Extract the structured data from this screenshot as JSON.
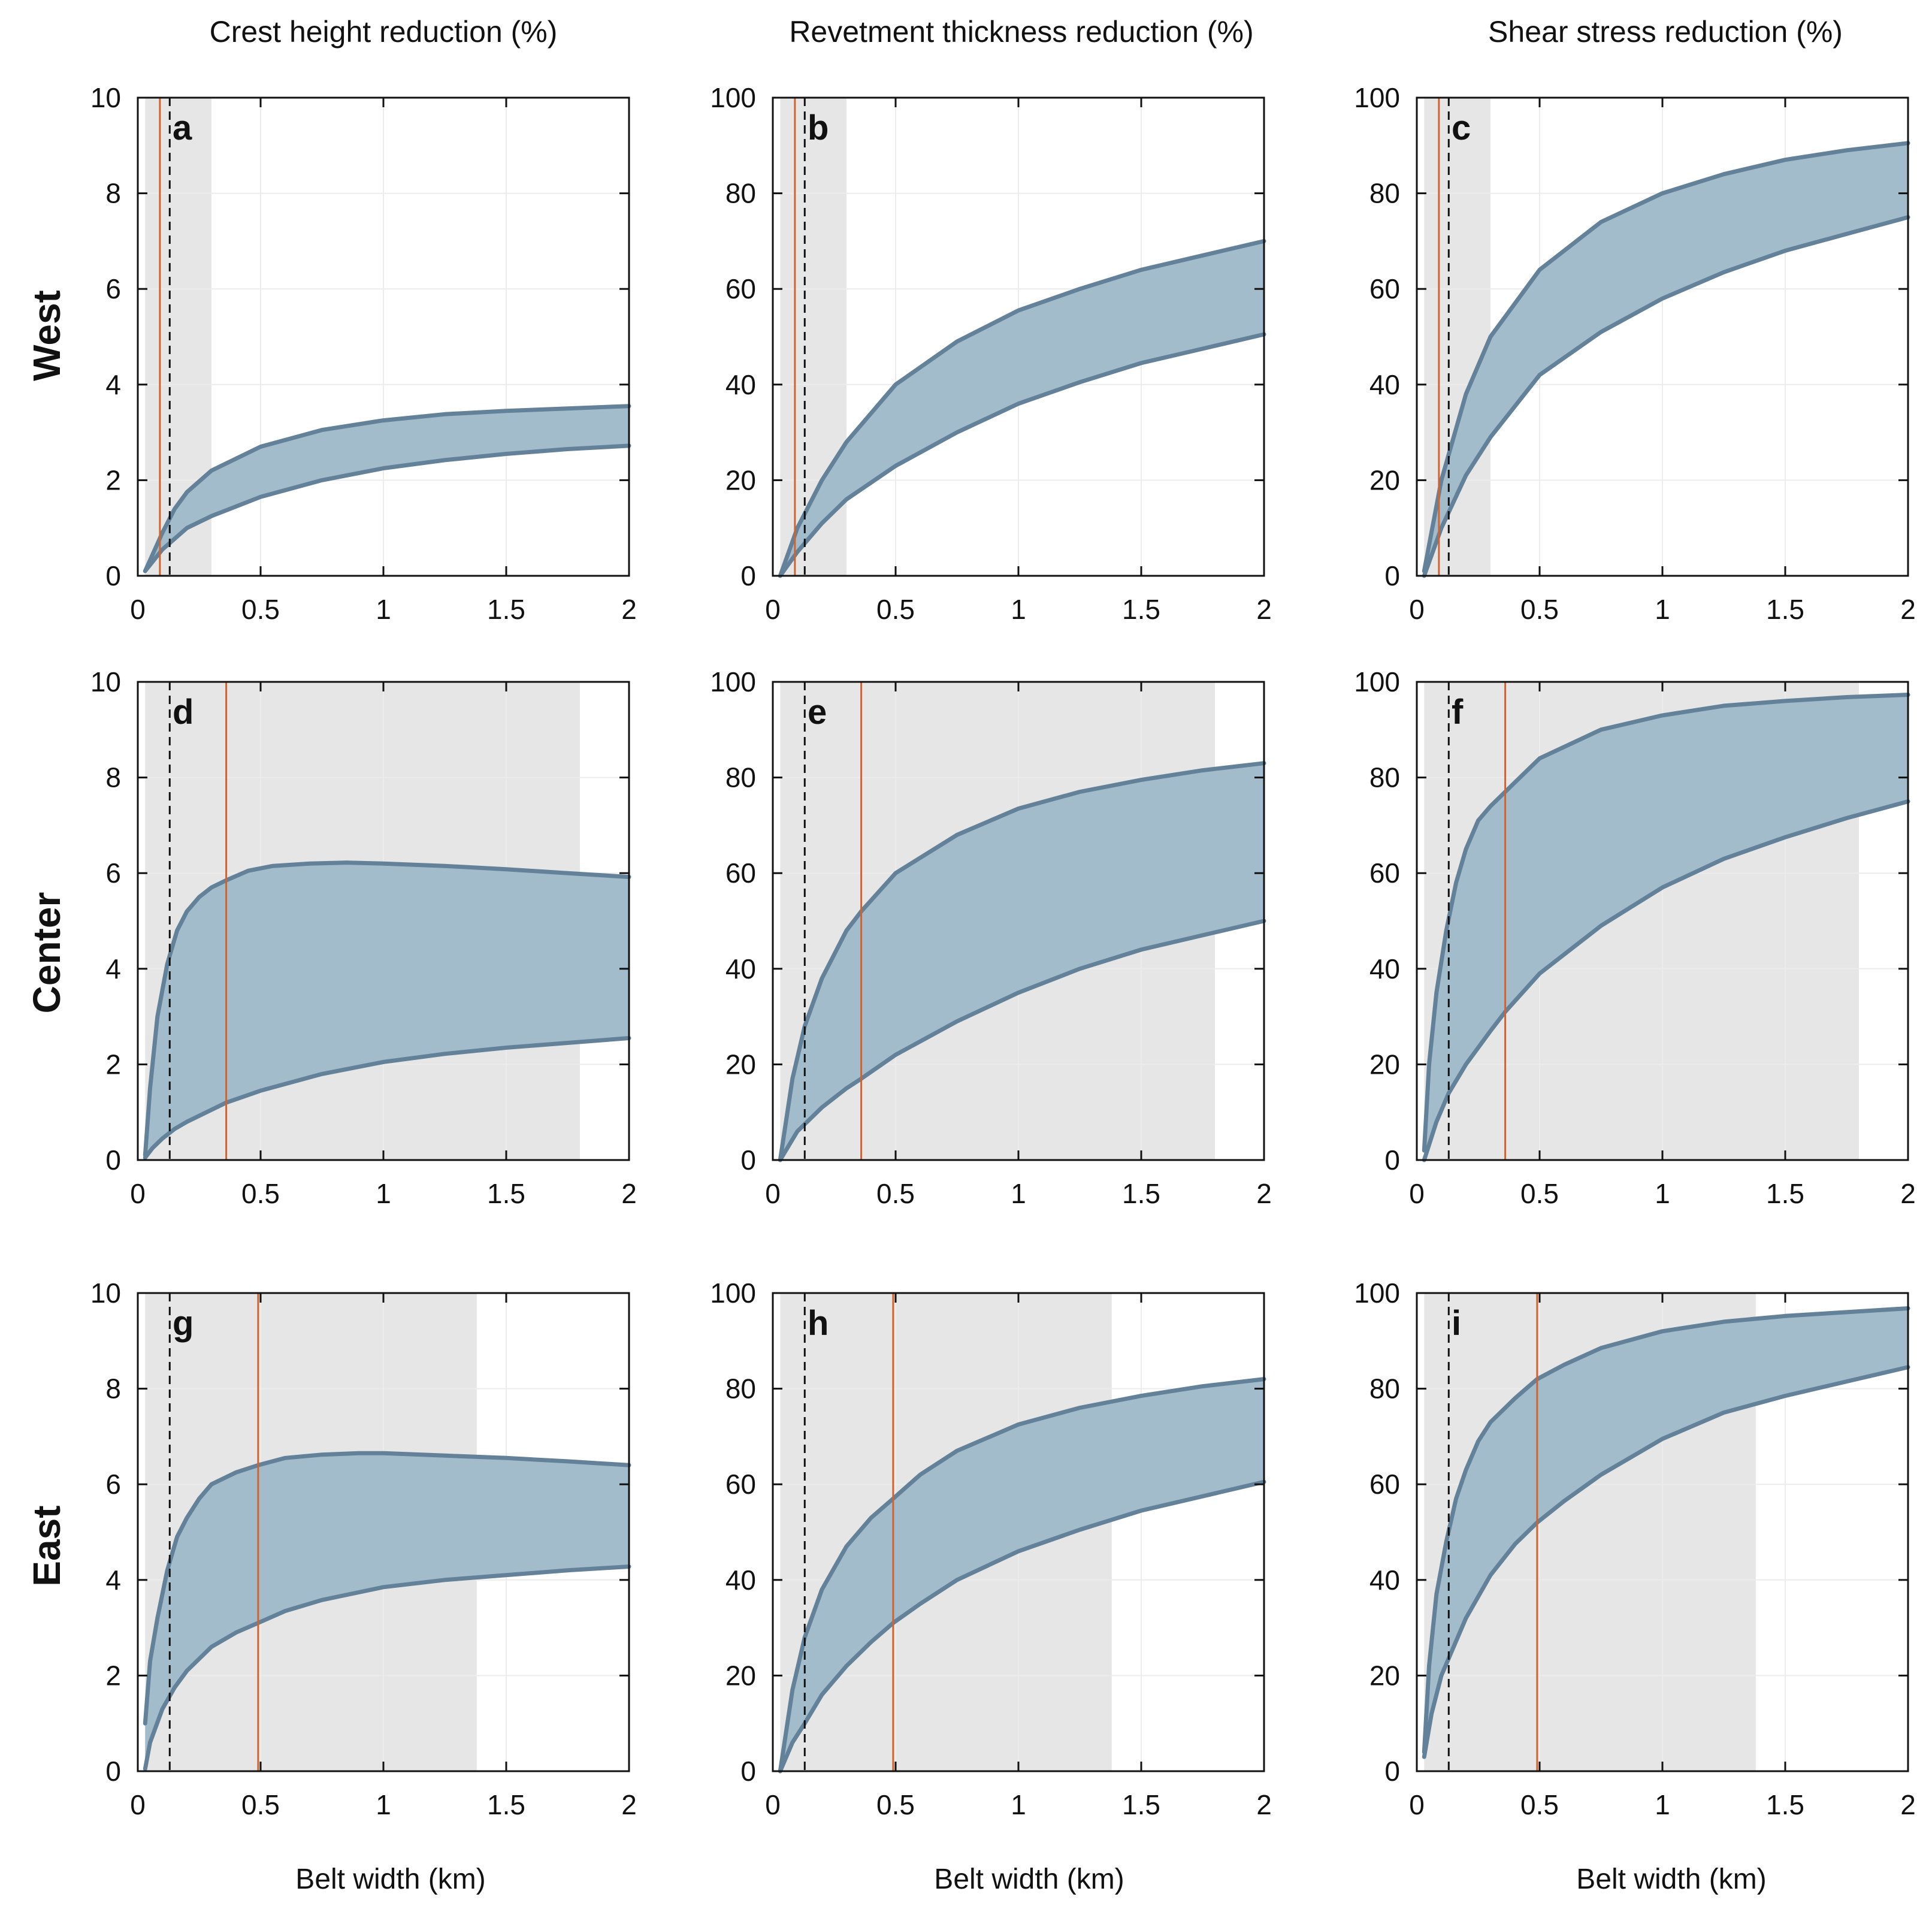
{
  "figure": {
    "column_titles": [
      "Crest height reduction (%)",
      "Revetment thickness reduction (%)",
      "Shear stress reduction (%)"
    ],
    "row_labels": [
      "West",
      "Center",
      "East"
    ],
    "x_axis_label": "Belt width (km)"
  },
  "colors": {
    "band_fill": "#a3bccb",
    "band_edge": "#64819a",
    "shade": "#e6e6e6",
    "orange_line": "#d2622e",
    "dashed_line": "#111111",
    "grid": "#ececec"
  },
  "chart_data": [
    {
      "id": "a",
      "type": "area",
      "letter": "a",
      "row": "West",
      "column": "Crest height reduction (%)",
      "xlabel": "",
      "ylabel": "",
      "xlim": [
        0,
        2
      ],
      "ylim": [
        0,
        10
      ],
      "xticks": [
        "0",
        "0.5",
        "1",
        "1.5",
        "2"
      ],
      "yticks": [
        "0",
        "2",
        "4",
        "6",
        "8",
        "10"
      ],
      "shaded_region": [
        0.03,
        0.3
      ],
      "orange_line_x": 0.09,
      "dashed_line_x": 0.13,
      "upper": {
        "x": [
          0.03,
          0.1,
          0.15,
          0.2,
          0.3,
          0.5,
          0.75,
          1.0,
          1.25,
          1.5,
          1.75,
          2.0
        ],
        "y": [
          0.1,
          0.9,
          1.4,
          1.75,
          2.2,
          2.7,
          3.05,
          3.25,
          3.38,
          3.45,
          3.5,
          3.55
        ]
      },
      "lower": {
        "x": [
          0.03,
          0.1,
          0.2,
          0.3,
          0.5,
          0.75,
          1.0,
          1.25,
          1.5,
          1.75,
          2.0
        ],
        "y": [
          0.1,
          0.55,
          1.0,
          1.25,
          1.65,
          2.0,
          2.25,
          2.42,
          2.55,
          2.65,
          2.72
        ]
      }
    },
    {
      "id": "b",
      "type": "area",
      "letter": "b",
      "row": "West",
      "column": "Revetment thickness reduction (%)",
      "xlabel": "",
      "ylabel": "",
      "xlim": [
        0,
        2
      ],
      "ylim": [
        0,
        100
      ],
      "xticks": [
        "0",
        "0.5",
        "1",
        "1.5",
        "2"
      ],
      "yticks": [
        "0",
        "20",
        "40",
        "60",
        "80",
        "100"
      ],
      "shaded_region": [
        0.03,
        0.3
      ],
      "orange_line_x": 0.09,
      "dashed_line_x": 0.13,
      "upper": {
        "x": [
          0.03,
          0.1,
          0.2,
          0.3,
          0.5,
          0.75,
          1.0,
          1.25,
          1.5,
          1.75,
          2.0
        ],
        "y": [
          0,
          10,
          20,
          28,
          40,
          49,
          55.5,
          60,
          64,
          67,
          70
        ]
      },
      "lower": {
        "x": [
          0.03,
          0.1,
          0.2,
          0.3,
          0.5,
          0.75,
          1.0,
          1.25,
          1.5,
          1.75,
          2.0
        ],
        "y": [
          0,
          5,
          11,
          16,
          23,
          30,
          36,
          40.5,
          44.5,
          47.5,
          50.5
        ]
      }
    },
    {
      "id": "c",
      "type": "area",
      "letter": "c",
      "row": "West",
      "column": "Shear stress reduction (%)",
      "xlabel": "",
      "ylabel": "",
      "xlim": [
        0,
        2
      ],
      "ylim": [
        0,
        100
      ],
      "xticks": [
        "0",
        "0.5",
        "1",
        "1.5",
        "2"
      ],
      "yticks": [
        "0",
        "20",
        "40",
        "60",
        "80",
        "100"
      ],
      "shaded_region": [
        0.03,
        0.3
      ],
      "orange_line_x": 0.09,
      "dashed_line_x": 0.13,
      "upper": {
        "x": [
          0.03,
          0.1,
          0.2,
          0.3,
          0.5,
          0.75,
          1.0,
          1.25,
          1.5,
          1.75,
          2.0
        ],
        "y": [
          1,
          20,
          38,
          50,
          64,
          74,
          80,
          84,
          87,
          89,
          90.5
        ]
      },
      "lower": {
        "x": [
          0.03,
          0.1,
          0.2,
          0.3,
          0.5,
          0.75,
          1.0,
          1.25,
          1.5,
          1.75,
          2.0
        ],
        "y": [
          0,
          10,
          21,
          29,
          42,
          51,
          58,
          63.5,
          68,
          71.5,
          75
        ]
      }
    },
    {
      "id": "d",
      "type": "area",
      "letter": "d",
      "row": "Center",
      "column": "Crest height reduction (%)",
      "xlabel": "",
      "ylabel": "",
      "xlim": [
        0,
        2
      ],
      "ylim": [
        0,
        10
      ],
      "xticks": [
        "0",
        "0.5",
        "1",
        "1.5",
        "2"
      ],
      "yticks": [
        "0",
        "2",
        "4",
        "6",
        "8",
        "10"
      ],
      "shaded_region": [
        0.03,
        1.8
      ],
      "orange_line_x": 0.36,
      "dashed_line_x": 0.13,
      "upper": {
        "x": [
          0.03,
          0.05,
          0.08,
          0.12,
          0.16,
          0.2,
          0.25,
          0.3,
          0.36,
          0.45,
          0.55,
          0.7,
          0.85,
          1.0,
          1.25,
          1.5,
          1.75,
          2.0
        ],
        "y": [
          0.1,
          1.5,
          3.0,
          4.1,
          4.8,
          5.2,
          5.5,
          5.7,
          5.85,
          6.05,
          6.15,
          6.2,
          6.22,
          6.2,
          6.15,
          6.08,
          6.0,
          5.92
        ]
      },
      "lower": {
        "x": [
          0.03,
          0.06,
          0.1,
          0.15,
          0.2,
          0.3,
          0.36,
          0.5,
          0.75,
          1.0,
          1.25,
          1.5,
          1.75,
          2.0
        ],
        "y": [
          0.05,
          0.25,
          0.45,
          0.65,
          0.8,
          1.05,
          1.2,
          1.45,
          1.8,
          2.05,
          2.22,
          2.35,
          2.45,
          2.55
        ]
      }
    },
    {
      "id": "e",
      "type": "area",
      "letter": "e",
      "row": "Center",
      "column": "Revetment thickness reduction (%)",
      "xlabel": "",
      "ylabel": "",
      "xlim": [
        0,
        2
      ],
      "ylim": [
        0,
        100
      ],
      "xticks": [
        "0",
        "0.5",
        "1",
        "1.5",
        "2"
      ],
      "yticks": [
        "0",
        "20",
        "40",
        "60",
        "80",
        "100"
      ],
      "shaded_region": [
        0.03,
        1.8
      ],
      "orange_line_x": 0.36,
      "dashed_line_x": 0.13,
      "upper": {
        "x": [
          0.03,
          0.08,
          0.13,
          0.2,
          0.3,
          0.36,
          0.5,
          0.75,
          1.0,
          1.25,
          1.5,
          1.75,
          2.0
        ],
        "y": [
          0,
          17,
          28,
          38,
          48,
          52,
          60,
          68,
          73.5,
          77,
          79.5,
          81.5,
          83
        ]
      },
      "lower": {
        "x": [
          0.03,
          0.1,
          0.2,
          0.3,
          0.36,
          0.5,
          0.75,
          1.0,
          1.25,
          1.5,
          1.75,
          2.0
        ],
        "y": [
          0,
          6,
          11,
          15,
          17,
          22,
          29,
          35,
          40,
          44,
          47,
          50
        ]
      }
    },
    {
      "id": "f",
      "type": "area",
      "letter": "f",
      "row": "Center",
      "column": "Shear stress reduction (%)",
      "xlabel": "",
      "ylabel": "",
      "xlim": [
        0,
        2
      ],
      "ylim": [
        0,
        100
      ],
      "xticks": [
        "0",
        "0.5",
        "1",
        "1.5",
        "2"
      ],
      "yticks": [
        "0",
        "20",
        "40",
        "60",
        "80",
        "100"
      ],
      "shaded_region": [
        0.03,
        1.8
      ],
      "orange_line_x": 0.36,
      "dashed_line_x": 0.13,
      "upper": {
        "x": [
          0.03,
          0.05,
          0.08,
          0.12,
          0.16,
          0.2,
          0.25,
          0.3,
          0.36,
          0.5,
          0.75,
          1.0,
          1.25,
          1.5,
          1.75,
          2.0
        ],
        "y": [
          2,
          20,
          35,
          48,
          58,
          65,
          71,
          74,
          77,
          84,
          90,
          93,
          95,
          96,
          96.8,
          97.3
        ]
      },
      "lower": {
        "x": [
          0.03,
          0.08,
          0.13,
          0.2,
          0.3,
          0.36,
          0.5,
          0.75,
          1.0,
          1.25,
          1.5,
          1.75,
          2.0
        ],
        "y": [
          0,
          8,
          14,
          20,
          27,
          31,
          39,
          49,
          57,
          63,
          67.5,
          71.5,
          75
        ]
      }
    },
    {
      "id": "g",
      "type": "area",
      "letter": "g",
      "row": "East",
      "column": "Crest height reduction (%)",
      "xlabel": "Belt width (km)",
      "ylabel": "",
      "xlim": [
        0,
        2
      ],
      "ylim": [
        0,
        10
      ],
      "xticks": [
        "0",
        "0.5",
        "1",
        "1.5",
        "2"
      ],
      "yticks": [
        "0",
        "2",
        "4",
        "6",
        "8",
        "10"
      ],
      "shaded_region": [
        0.03,
        1.38
      ],
      "orange_line_x": 0.49,
      "dashed_line_x": 0.13,
      "upper": {
        "x": [
          0.03,
          0.05,
          0.08,
          0.12,
          0.16,
          0.2,
          0.25,
          0.3,
          0.4,
          0.49,
          0.6,
          0.75,
          0.9,
          1.0,
          1.25,
          1.5,
          1.75,
          2.0
        ],
        "y": [
          1.0,
          2.3,
          3.2,
          4.2,
          4.9,
          5.3,
          5.7,
          6.0,
          6.25,
          6.4,
          6.55,
          6.62,
          6.65,
          6.65,
          6.6,
          6.55,
          6.48,
          6.4
        ]
      },
      "lower": {
        "x": [
          0.03,
          0.05,
          0.1,
          0.15,
          0.2,
          0.3,
          0.4,
          0.49,
          0.6,
          0.75,
          1.0,
          1.25,
          1.5,
          1.75,
          2.0
        ],
        "y": [
          0.05,
          0.6,
          1.3,
          1.75,
          2.1,
          2.6,
          2.9,
          3.1,
          3.35,
          3.58,
          3.85,
          4.0,
          4.1,
          4.2,
          4.28
        ]
      }
    },
    {
      "id": "h",
      "type": "area",
      "letter": "h",
      "row": "East",
      "column": "Revetment thickness reduction (%)",
      "xlabel": "Belt width (km)",
      "ylabel": "",
      "xlim": [
        0,
        2
      ],
      "ylim": [
        0,
        100
      ],
      "xticks": [
        "0",
        "0.5",
        "1",
        "1.5",
        "2"
      ],
      "yticks": [
        "0",
        "20",
        "40",
        "60",
        "80",
        "100"
      ],
      "shaded_region": [
        0.03,
        1.38
      ],
      "orange_line_x": 0.49,
      "dashed_line_x": 0.13,
      "upper": {
        "x": [
          0.03,
          0.08,
          0.13,
          0.2,
          0.3,
          0.4,
          0.49,
          0.6,
          0.75,
          1.0,
          1.25,
          1.5,
          1.75,
          2.0
        ],
        "y": [
          0,
          17,
          28,
          38,
          47,
          53,
          57,
          62,
          67,
          72.5,
          76,
          78.5,
          80.5,
          82
        ]
      },
      "lower": {
        "x": [
          0.03,
          0.08,
          0.13,
          0.2,
          0.3,
          0.4,
          0.49,
          0.6,
          0.75,
          1.0,
          1.25,
          1.5,
          1.75,
          2.0
        ],
        "y": [
          0,
          6,
          10,
          16,
          22,
          27,
          31,
          35,
          40,
          46,
          50.5,
          54.5,
          57.5,
          60.5
        ]
      }
    },
    {
      "id": "i",
      "type": "area",
      "letter": "i",
      "row": "East",
      "column": "Shear stress reduction (%)",
      "xlabel": "Belt width (km)",
      "ylabel": "",
      "xlim": [
        0,
        2
      ],
      "ylim": [
        0,
        100
      ],
      "xticks": [
        "0",
        "0.5",
        "1",
        "1.5",
        "2"
      ],
      "yticks": [
        "0",
        "20",
        "40",
        "60",
        "80",
        "100"
      ],
      "shaded_region": [
        0.03,
        1.38
      ],
      "orange_line_x": 0.49,
      "dashed_line_x": 0.13,
      "upper": {
        "x": [
          0.03,
          0.05,
          0.08,
          0.12,
          0.16,
          0.2,
          0.25,
          0.3,
          0.4,
          0.49,
          0.6,
          0.75,
          1.0,
          1.25,
          1.5,
          1.75,
          2.0
        ],
        "y": [
          4,
          22,
          37,
          48,
          57,
          63,
          69,
          73,
          78,
          82,
          85,
          88.5,
          92,
          94,
          95.2,
          96,
          96.8
        ]
      },
      "lower": {
        "x": [
          0.03,
          0.06,
          0.1,
          0.15,
          0.2,
          0.3,
          0.4,
          0.49,
          0.6,
          0.75,
          1.0,
          1.25,
          1.5,
          1.75,
          2.0
        ],
        "y": [
          3,
          12,
          20,
          26,
          32,
          41,
          47.5,
          52,
          56.5,
          62,
          69.5,
          75,
          78.5,
          81.5,
          84.5
        ]
      }
    }
  ]
}
